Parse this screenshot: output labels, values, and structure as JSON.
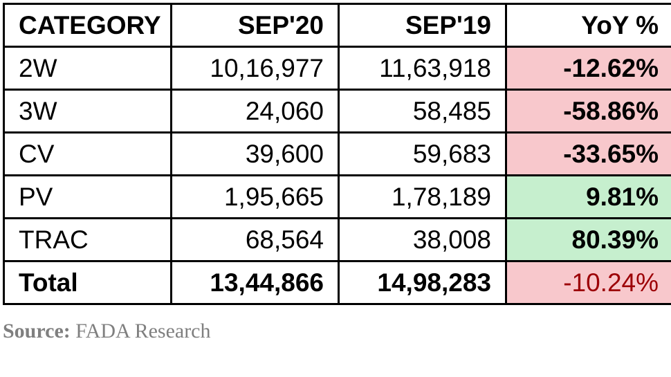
{
  "table": {
    "headers": [
      "CATEGORY",
      "SEP'20",
      "SEP'19",
      "YoY %"
    ],
    "rows": [
      {
        "category": "2W",
        "sep20": "10,16,977",
        "sep19": "11,63,918",
        "yoy": "-12.62%",
        "trend": "negative"
      },
      {
        "category": "3W",
        "sep20": "24,060",
        "sep19": "58,485",
        "yoy": "-58.86%",
        "trend": "negative"
      },
      {
        "category": "CV",
        "sep20": "39,600",
        "sep19": "59,683",
        "yoy": "-33.65%",
        "trend": "negative"
      },
      {
        "category": "PV",
        "sep20": "1,95,665",
        "sep19": "1,78,189",
        "yoy": "9.81%",
        "trend": "positive"
      },
      {
        "category": "TRAC",
        "sep20": "68,564",
        "sep19": "38,008",
        "yoy": "80.39%",
        "trend": "positive"
      }
    ],
    "total": {
      "category": "Total",
      "sep20": "13,44,866",
      "sep19": "14,98,283",
      "yoy": "-10.24%",
      "trend": "negative"
    }
  },
  "source": {
    "label": "Source:",
    "value": "FADA Research"
  },
  "colors": {
    "negative_fill": "#f8c8cc",
    "negative_text": "#9c0006",
    "positive_fill": "#c6efce",
    "positive_text": "#006100",
    "source_text": "#7f7f7f"
  }
}
